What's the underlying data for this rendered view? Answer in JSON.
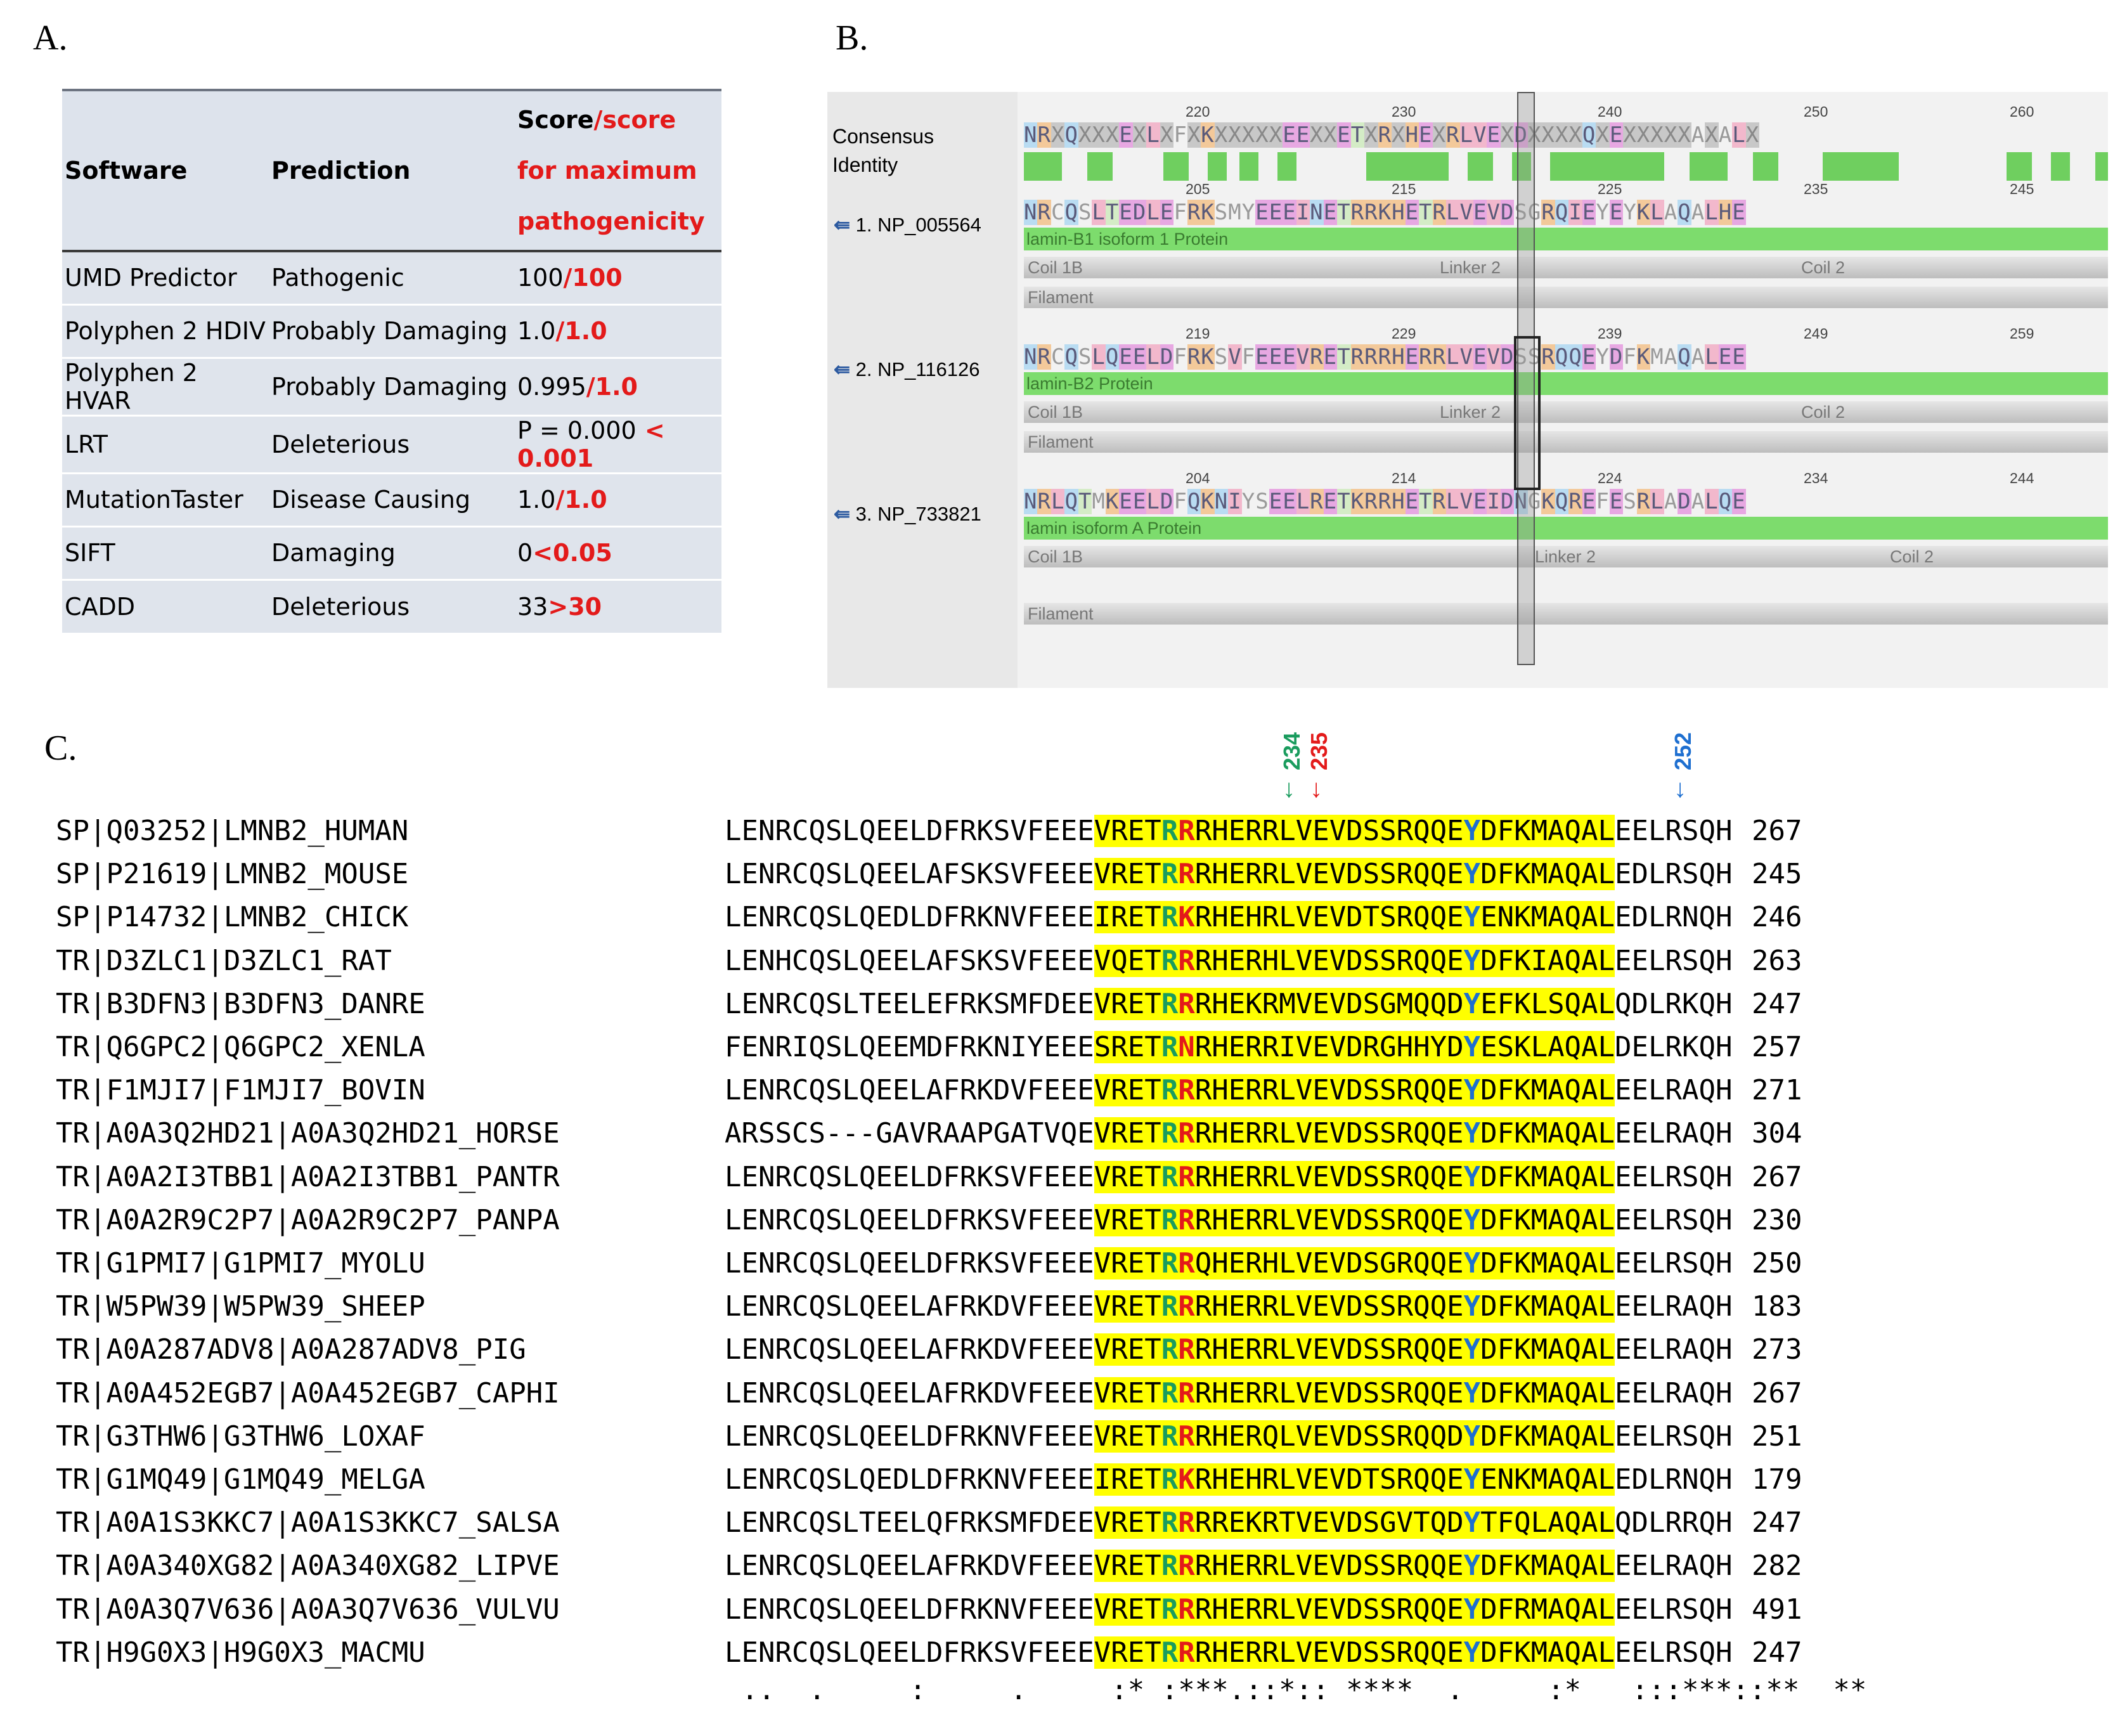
{
  "panel_labels": {
    "a": "A.",
    "b": "B.",
    "c": "C."
  },
  "tableA": {
    "headers": {
      "software": "Software",
      "prediction": "Prediction",
      "score_black": "Score",
      "score_red": "/score for maximum pathogenicity"
    },
    "rows": [
      {
        "software": "UMD Predictor",
        "prediction": "Pathogenic",
        "score": "100",
        "max": "/100"
      },
      {
        "software": "Polyphen 2 HDIV",
        "prediction": "Probably Damaging",
        "score": "1.0",
        "max": "/1.0"
      },
      {
        "software": "Polyphen 2 HVAR",
        "prediction": "Probably Damaging",
        "score": "0.995",
        "max": "/1.0"
      },
      {
        "software": "LRT",
        "prediction": "Deleterious",
        "score": "P = 0.000",
        "max": " < 0.001"
      },
      {
        "software": "MutationTaster",
        "prediction": "Disease Causing",
        "score": "1.0",
        "max": "/1.0"
      },
      {
        "software": "SIFT",
        "prediction": "Damaging",
        "score": "0",
        "max": "<0.05"
      },
      {
        "software": "CADD",
        "prediction": "Deleterious",
        "score": "33",
        "max": ">30"
      }
    ]
  },
  "panelB": {
    "consensus_label": "Consensus",
    "identity_label": "Identity",
    "consensus_ticks": [
      "220",
      "230",
      "240",
      "250",
      "260"
    ],
    "consensus_seq": "NRXQXXXEXLXFXKXXXXXEEXXETXRXHEXRLVEXDXXXXQXEXXXXXAXALX",
    "sequences": [
      {
        "label": "1. NP_005564",
        "ticks": [
          "205",
          "215",
          "225",
          "235",
          "245"
        ],
        "seq": "NRCQSLTEDLEFRKSMYEEEINETRRKHETRLVEVDSGRQIEYEYKLAQALHE",
        "protein": "lamin-B1 isoform 1 Protein",
        "coil1": "Coil 1B",
        "linker": "Linker 2",
        "coil2": "Coil 2",
        "filament": "Filament"
      },
      {
        "label": "2. NP_116126",
        "ticks": [
          "219",
          "229",
          "239",
          "249",
          "259"
        ],
        "seq": "NRCQSLQEELDFRKSVFEEEVRETRRRHERRLVEVDSSRQQEYDFKMAQALEE",
        "protein": "lamin-B2 Protein",
        "coil1": "Coil 1B",
        "linker": "Linker 2",
        "coil2": "Coil 2",
        "filament": "Filament"
      },
      {
        "label": "3. NP_733821",
        "ticks": [
          "204",
          "214",
          "224",
          "234",
          "244"
        ],
        "seq": "NRLQTMKEELDFQKNIYSEELRETKRRHETRLVEIDNGKQREFESRLADALQE",
        "protein": "lamin isoform A Protein",
        "coil1": "Coil 1B",
        "linker": "Linker 2",
        "coil2": "Coil 2",
        "filament": "Filament"
      }
    ]
  },
  "panelC": {
    "markers": [
      {
        "pos": "234",
        "color": "#1a9c5e"
      },
      {
        "pos": "235",
        "color": "#e31a1a"
      },
      {
        "pos": "252",
        "color": "#1e6fd0"
      }
    ],
    "rows": [
      {
        "name": "SP|Q03252|LMNB2_HUMAN",
        "pre": "LENRCQSLQEELDFRKSVFEEE",
        "hi1": "VRET",
        "r1": "R",
        "r2": "R",
        "hi2": "RHERRLVEVDSSRQQE",
        "y": "Y",
        "hi3": "DFKMAQAL",
        "post": "EELRSQH",
        "num": "267"
      },
      {
        "name": "SP|P21619|LMNB2_MOUSE",
        "pre": "LENRCQSLQEELAFSKSVFEEE",
        "hi1": "VRET",
        "r1": "R",
        "r2": "R",
        "hi2": "RHERRLVEVDSSRQQE",
        "y": "Y",
        "hi3": "DFKMAQAL",
        "post": "EDLRSQH",
        "num": "245"
      },
      {
        "name": "SP|P14732|LMNB2_CHICK",
        "pre": "LENRCQSLQEDLDFRKNVFEEE",
        "hi1": "IRET",
        "r1": "R",
        "r2": "K",
        "hi2": "RHEHRLVEVDTSRQQE",
        "y": "Y",
        "hi3": "ENKMAQAL",
        "post": "EDLRNQH",
        "num": "246"
      },
      {
        "name": "TR|D3ZLC1|D3ZLC1_RAT",
        "pre": "LENHCQSLQEELAFSKSVFEEE",
        "hi1": "VQET",
        "r1": "R",
        "r2": "R",
        "hi2": "RHERHLVEVDSSRQQE",
        "y": "Y",
        "hi3": "DFKIAQAL",
        "post": "EELRSQH",
        "num": "263"
      },
      {
        "name": "TR|B3DFN3|B3DFN3_DANRE",
        "pre": "LENRCQSLTEELEFRKSMFDEE",
        "hi1": "VRET",
        "r1": "R",
        "r2": "R",
        "hi2": "RHEKRMVEVDSGMQQD",
        "y": "Y",
        "hi3": "EFKLSQAL",
        "post": "QDLRKQH",
        "num": "247"
      },
      {
        "name": "TR|Q6GPC2|Q6GPC2_XENLA",
        "pre": "FENRIQSLQEEMDFRKNIYEEE",
        "hi1": "SRET",
        "r1": "R",
        "r2": "N",
        "hi2": "RHERRIVEVDRGHHYD",
        "y": "Y",
        "hi3": "ESKLAQAL",
        "post": "DELRKQH",
        "num": "257"
      },
      {
        "name": "TR|F1MJI7|F1MJI7_BOVIN",
        "pre": "LENRCQSLQEELAFRKDVFEEE",
        "hi1": "VRET",
        "r1": "R",
        "r2": "R",
        "hi2": "RHERRLVEVDSSRQQE",
        "y": "Y",
        "hi3": "DFKMAQAL",
        "post": "EELRAQH",
        "num": "271"
      },
      {
        "name": "TR|A0A3Q2HD21|A0A3Q2HD21_HORSE",
        "pre": "ARSSCS---GAVRAAPGATVQE",
        "hi1": "VRET",
        "r1": "R",
        "r2": "R",
        "hi2": "RHERRLVEVDSSRQQE",
        "y": "Y",
        "hi3": "DFKMAQAL",
        "post": "EELRAQH",
        "num": "304"
      },
      {
        "name": "TR|A0A2I3TBB1|A0A2I3TBB1_PANTR",
        "pre": "LENRCQSLQEELDFRKSVFEEE",
        "hi1": "VRET",
        "r1": "R",
        "r2": "R",
        "hi2": "RHERRLVEVDSSRQQE",
        "y": "Y",
        "hi3": "DFKMAQAL",
        "post": "EELRSQH",
        "num": "267"
      },
      {
        "name": "TR|A0A2R9C2P7|A0A2R9C2P7_PANPA",
        "pre": "LENRCQSLQEELDFRKSVFEEE",
        "hi1": "VRET",
        "r1": "R",
        "r2": "R",
        "hi2": "RHERRLVEVDSSRQQE",
        "y": "Y",
        "hi3": "DFKMAQAL",
        "post": "EELRSQH",
        "num": "230"
      },
      {
        "name": "TR|G1PMI7|G1PMI7_MYOLU",
        "pre": "LENRCQSLQEELDFRKSVFEEE",
        "hi1": "VRET",
        "r1": "R",
        "r2": "R",
        "hi2": "QHERHLVEVDSGRQQE",
        "y": "Y",
        "hi3": "DFKMAQAL",
        "post": "EELRSQH",
        "num": "250"
      },
      {
        "name": "TR|W5PW39|W5PW39_SHEEP",
        "pre": "LENRCQSLQEELAFRKDVFEEE",
        "hi1": "VRET",
        "r1": "R",
        "r2": "R",
        "hi2": "RHERRLVEVDSSRQQE",
        "y": "Y",
        "hi3": "DFKMAQAL",
        "post": "EELRAQH",
        "num": "183"
      },
      {
        "name": "TR|A0A287ADV8|A0A287ADV8_PIG",
        "pre": "LENRCQSLQEELAFRKDVFEEE",
        "hi1": "VRET",
        "r1": "R",
        "r2": "R",
        "hi2": "RHERRLVEVDSSRQQE",
        "y": "Y",
        "hi3": "DFKMAQAL",
        "post": "EELRAQH",
        "num": "273"
      },
      {
        "name": "TR|A0A452EGB7|A0A452EGB7_CAPHI",
        "pre": "LENRCQSLQEELAFRKDVFEEE",
        "hi1": "VRET",
        "r1": "R",
        "r2": "R",
        "hi2": "RHERRLVEVDSSRQQE",
        "y": "Y",
        "hi3": "DFKMAQAL",
        "post": "EELRAQH",
        "num": "267"
      },
      {
        "name": "TR|G3THW6|G3THW6_LOXAF",
        "pre": "LENRCQSLQEELDFRKNVFEEE",
        "hi1": "VRET",
        "r1": "R",
        "r2": "R",
        "hi2": "RHERQLVEVDSSRQQD",
        "y": "Y",
        "hi3": "DFKMAQAL",
        "post": "EELRSQH",
        "num": "251"
      },
      {
        "name": "TR|G1MQ49|G1MQ49_MELGA",
        "pre": "LENRCQSLQEDLDFRKNVFEEE",
        "hi1": "IRET",
        "r1": "R",
        "r2": "K",
        "hi2": "RHEHRLVEVDTSRQQE",
        "y": "Y",
        "hi3": "ENKMAQAL",
        "post": "EDLRNQH",
        "num": "179"
      },
      {
        "name": "TR|A0A1S3KKC7|A0A1S3KKC7_SALSA",
        "pre": "LENRCQSLTEELQFRKSMFDEE",
        "hi1": "VRET",
        "r1": "R",
        "r2": "R",
        "hi2": "RREKRTVEVDSGVTQD",
        "y": "Y",
        "hi3": "TFQLAQAL",
        "post": "QDLRRQH",
        "num": "247"
      },
      {
        "name": "TR|A0A340XG82|A0A340XG82_LIPVE",
        "pre": "LENRCQSLQEELAFRKDVFEEE",
        "hi1": "VRET",
        "r1": "R",
        "r2": "R",
        "hi2": "RHERRLVEVDSSRQQE",
        "y": "Y",
        "hi3": "DFKMAQAL",
        "post": "EELRAQH",
        "num": "282"
      },
      {
        "name": "TR|A0A3Q7V636|A0A3Q7V636_VULVU",
        "pre": "LENRCQSLQEELDFRKNVFEEE",
        "hi1": "VRET",
        "r1": "R",
        "r2": "R",
        "hi2": "RHERRLVEVDSSRQQE",
        "y": "Y",
        "hi3": "DFRMAQAL",
        "post": "EELRSQH",
        "num": "491"
      },
      {
        "name": "TR|H9G0X3|H9G0X3_MACMU",
        "pre": "LENRCQSLQEELDFRKSVFEEE",
        "hi1": "VRET",
        "r1": "R",
        "r2": "R",
        "hi2": "RHERRLVEVDSSRQQE",
        "y": "Y",
        "hi3": "DFKMAQAL",
        "post": "EELRSQH",
        "num": "247"
      }
    ],
    "conservation": " ..  .     :     .     :* :***.::*:: ****  .     :*   :::***::**  **"
  }
}
